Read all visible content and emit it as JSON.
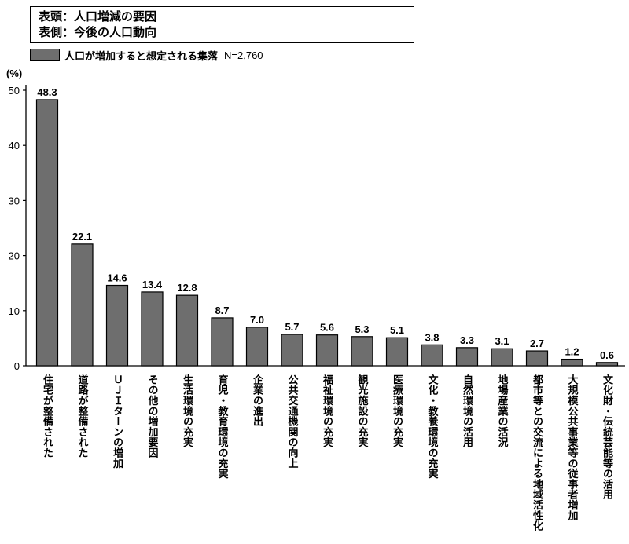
{
  "header": {
    "line1": "表頭：人口増減の要因",
    "line2": "表側：今後の人口動向"
  },
  "chart_data": {
    "type": "bar",
    "ylabel": "(%)",
    "ylim": [
      0,
      50
    ],
    "yticks": [
      0,
      10,
      20,
      30,
      40,
      50
    ],
    "grid": false,
    "legend_position": "top-left",
    "legend_note": "N=2,760",
    "bar_color": "#6e6e6e",
    "categories": [
      "住宅が整備された",
      "道路が整備された",
      "ＵＪＩターンの増加",
      "その他の増加要因",
      "生活環境の充実",
      "育児・教育環境の充実",
      "企業の進出",
      "公共交通機関の向上",
      "福祉環境の充実",
      "観光施設の充実",
      "医療環境の充実",
      "文化・教養環境の充実",
      "自然環境の活用",
      "地場産業の活況",
      "都市等との交流による地域活性化",
      "大規模公共事業等の従事者増加",
      "文化財・伝統芸能等の活用"
    ],
    "series": [
      {
        "name": "人口が増加すると想定される集落",
        "values": [
          48.3,
          22.1,
          14.6,
          13.4,
          12.8,
          8.7,
          7.0,
          5.7,
          5.6,
          5.3,
          5.1,
          3.8,
          3.3,
          3.1,
          2.7,
          1.2,
          0.6
        ]
      }
    ],
    "data_labels": [
      "48.3",
      "22.1",
      "14.6",
      "13.4",
      "12.8",
      "8.7",
      "7.0",
      "5.7",
      "5.6",
      "5.3",
      "5.1",
      "3.8",
      "3.3",
      "3.1",
      "2.7",
      "1.2",
      "0.6"
    ]
  }
}
